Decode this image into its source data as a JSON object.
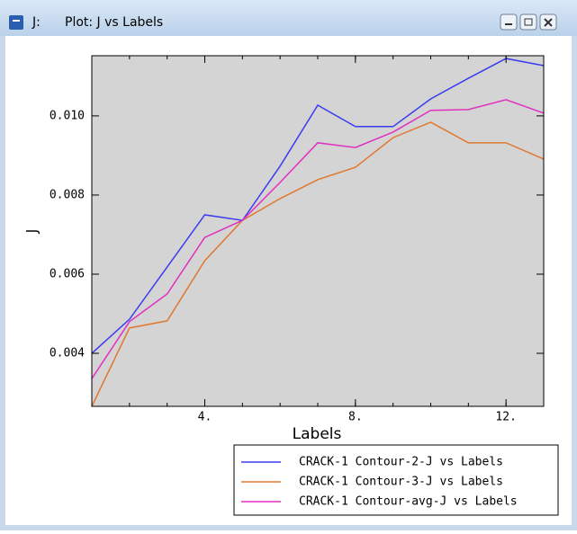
{
  "window": {
    "prefix": "J:",
    "title": "Plot: J vs Labels"
  },
  "chart_data": {
    "type": "line",
    "xlabel": "Labels",
    "ylabel": "J",
    "x": [
      1,
      2,
      3,
      4,
      5,
      6,
      7,
      8,
      9,
      10,
      11,
      12,
      13
    ],
    "xlim": [
      1,
      13
    ],
    "xticks": [
      {
        "value": 4,
        "label": "4."
      },
      {
        "value": 8,
        "label": "8."
      },
      {
        "value": 12,
        "label": "12."
      }
    ],
    "ylim": [
      0.00266,
      0.01152
    ],
    "yticks": [
      0.004,
      0.006,
      0.008,
      {
        "value": 0.01,
        "label": "0.010"
      }
    ],
    "background": "#d4d4d4",
    "series": [
      {
        "name": "CRACK-1 Contour-2-J vs Labels",
        "color": "#3b3bf0",
        "values": [
          0.004,
          0.00486,
          0.00618,
          0.0075,
          0.00736,
          0.00873,
          0.01027,
          0.00973,
          0.00973,
          0.01043,
          0.01095,
          0.01145,
          0.01127
        ]
      },
      {
        "name": "CRACK-1 Contour-3-J vs Labels",
        "color": "#e07830",
        "values": [
          0.00266,
          0.00464,
          0.00482,
          0.00634,
          0.00736,
          0.00791,
          0.00839,
          0.0087,
          0.00945,
          0.00984,
          0.00932,
          0.00932,
          0.00891
        ]
      },
      {
        "name": "CRACK-1 Contour-avg-J vs Labels",
        "color": "#e030c0",
        "values": [
          0.00336,
          0.0048,
          0.0055,
          0.00693,
          0.00736,
          0.00832,
          0.00932,
          0.0092,
          0.00959,
          0.01014,
          0.01016,
          0.01041,
          0.01007
        ]
      }
    ]
  }
}
